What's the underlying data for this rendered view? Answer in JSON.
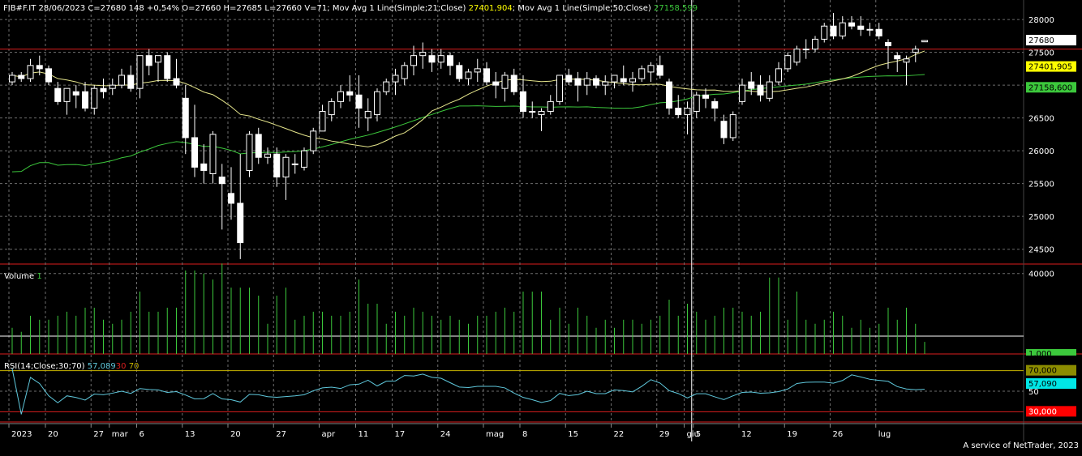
{
  "header": {
    "symbol_info": "FIB#F.IT 28/06/2023 C=27680 148 +0,54% O=27660 H=27685 L=27660 V=71;",
    "ma21_label": "Mov Avg 1 Line(Simple;21;Close)",
    "ma21_value": "27401,904",
    "sep": ";",
    "ma50_label": "Mov Avg 1 Line(Simple;50;Close)",
    "ma50_value": "27158,599"
  },
  "volume_label": {
    "name": "Volume",
    "value": "1"
  },
  "rsi_label": {
    "name": "RSI(14;Close;30;70)",
    "value": "57,089",
    "low": "30",
    "high": "70"
  },
  "credit": "A service of NetTrader, 2023",
  "colors": {
    "background": "#000000",
    "candle": "#ffffff",
    "ma21": "#e6e68c",
    "ma50": "#3cc83c",
    "volume": "#3cc83c",
    "rsi": "#5fc8dc",
    "limit_red": "#dc1e1e",
    "grid": "#6e6e6e",
    "badge_last": "#ffffff",
    "badge_ma21": "#ffff00",
    "badge_ma50": "#3cc83c",
    "badge_rsi70": "#8c8c00",
    "badge_rsi": "#00e6e6",
    "badge_rsi30": "#ff0000"
  },
  "chart_data": [
    {
      "type": "candlestick",
      "ylim": [
        24200,
        28100
      ],
      "yticks": [
        "24500",
        "25000",
        "25500",
        "26000",
        "26500",
        "27000",
        "27500",
        "28000"
      ],
      "last_badges": [
        "27680",
        "27401,905",
        "27158,600"
      ],
      "reference_line": 27550,
      "ohlc": [
        [
          27050,
          27200,
          27000,
          27150
        ],
        [
          27150,
          27200,
          27050,
          27100
        ],
        [
          27100,
          27400,
          27050,
          27300
        ],
        [
          27300,
          27450,
          27150,
          27250
        ],
        [
          27250,
          27300,
          27000,
          27050
        ],
        [
          26950,
          27050,
          26700,
          26750
        ],
        [
          26750,
          26950,
          26550,
          26950
        ],
        [
          26900,
          27000,
          26650,
          26850
        ],
        [
          26900,
          27050,
          26600,
          26650
        ],
        [
          26650,
          27000,
          26550,
          26950
        ],
        [
          26950,
          27100,
          26800,
          26900
        ],
        [
          26950,
          27100,
          26850,
          27000
        ],
        [
          27000,
          27250,
          26950,
          27150
        ],
        [
          27150,
          27300,
          26900,
          26950
        ],
        [
          26950,
          27450,
          26800,
          27450
        ],
        [
          27450,
          27550,
          27150,
          27300
        ],
        [
          27350,
          27450,
          27050,
          27450
        ],
        [
          27450,
          27500,
          27050,
          27100
        ],
        [
          27100,
          27400,
          26950,
          27000
        ],
        [
          26800,
          27000,
          25950,
          26200
        ],
        [
          26200,
          26700,
          25600,
          25750
        ],
        [
          25800,
          26100,
          25500,
          25700
        ],
        [
          25650,
          26300,
          25500,
          26250
        ],
        [
          25600,
          25800,
          24800,
          25500
        ],
        [
          25350,
          25750,
          24950,
          25200
        ],
        [
          25200,
          25950,
          24350,
          24600
        ],
        [
          25700,
          26300,
          25600,
          26250
        ],
        [
          26250,
          26350,
          25800,
          25900
        ],
        [
          25900,
          26050,
          25800,
          25950
        ],
        [
          25950,
          26050,
          25450,
          25600
        ],
        [
          25600,
          25950,
          25250,
          25900
        ],
        [
          25800,
          25950,
          25650,
          25800
        ],
        [
          25750,
          26050,
          25700,
          26000
        ],
        [
          26000,
          26350,
          25950,
          26300
        ],
        [
          26300,
          26700,
          26300,
          26600
        ],
        [
          26550,
          26800,
          26450,
          26750
        ],
        [
          26750,
          27000,
          26650,
          26900
        ],
        [
          26900,
          27150,
          26750,
          26850
        ],
        [
          26850,
          27150,
          26350,
          26650
        ],
        [
          26500,
          26800,
          26300,
          26600
        ],
        [
          26550,
          26950,
          26450,
          26900
        ],
        [
          26900,
          27100,
          26850,
          27050
        ],
        [
          27050,
          27250,
          26850,
          27150
        ],
        [
          27100,
          27350,
          27000,
          27300
        ],
        [
          27300,
          27600,
          27150,
          27450
        ],
        [
          27450,
          27650,
          27250,
          27500
        ],
        [
          27450,
          27550,
          27200,
          27350
        ],
        [
          27350,
          27550,
          27250,
          27450
        ],
        [
          27450,
          27500,
          27150,
          27300
        ],
        [
          27300,
          27350,
          27050,
          27100
        ],
        [
          27100,
          27250,
          27000,
          27200
        ],
        [
          27200,
          27400,
          27050,
          27250
        ],
        [
          27250,
          27350,
          27000,
          27050
        ],
        [
          27050,
          27200,
          26800,
          27000
        ],
        [
          26950,
          27200,
          26750,
          27150
        ],
        [
          27150,
          27250,
          26850,
          26900
        ],
        [
          26900,
          27150,
          26500,
          26600
        ],
        [
          26600,
          26750,
          26500,
          26600
        ],
        [
          26550,
          26650,
          26300,
          26600
        ],
        [
          26600,
          26850,
          26550,
          26750
        ],
        [
          26750,
          27150,
          26700,
          27150
        ],
        [
          27150,
          27250,
          27000,
          27050
        ],
        [
          27100,
          27200,
          26750,
          27000
        ],
        [
          27000,
          27200,
          26850,
          27100
        ],
        [
          27100,
          27150,
          26950,
          27000
        ],
        [
          27000,
          27150,
          26850,
          27050
        ],
        [
          27050,
          27150,
          26950,
          27150
        ],
        [
          27100,
          27300,
          27000,
          27050
        ],
        [
          27050,
          27200,
          26900,
          27100
        ],
        [
          27100,
          27300,
          27050,
          27250
        ],
        [
          27200,
          27350,
          27050,
          27300
        ],
        [
          27300,
          27450,
          27100,
          27150
        ],
        [
          27050,
          27100,
          26550,
          26650
        ],
        [
          26650,
          26850,
          26500,
          26550
        ],
        [
          26550,
          26750,
          26250,
          26650
        ],
        [
          26600,
          26900,
          26500,
          26850
        ],
        [
          26850,
          26950,
          26650,
          26800
        ],
        [
          26750,
          26800,
          26450,
          26650
        ],
        [
          26450,
          26550,
          26100,
          26200
        ],
        [
          26200,
          26600,
          26150,
          26550
        ],
        [
          26750,
          27100,
          26700,
          27000
        ],
        [
          27050,
          27200,
          26850,
          26950
        ],
        [
          27000,
          27150,
          26750,
          26850
        ],
        [
          26800,
          27150,
          26750,
          27050
        ],
        [
          27050,
          27350,
          27000,
          27250
        ],
        [
          27250,
          27500,
          27200,
          27450
        ],
        [
          27350,
          27600,
          27300,
          27550
        ],
        [
          27550,
          27700,
          27400,
          27550
        ],
        [
          27550,
          27750,
          27500,
          27700
        ],
        [
          27700,
          27950,
          27650,
          27900
        ],
        [
          27900,
          28100,
          27700,
          27750
        ],
        [
          27750,
          28050,
          27700,
          27950
        ],
        [
          27950,
          28050,
          27850,
          27900
        ],
        [
          27900,
          28050,
          27750,
          27850
        ],
        [
          27850,
          27950,
          27750,
          27850
        ],
        [
          27850,
          27950,
          27700,
          27750
        ],
        [
          27650,
          27700,
          27250,
          27600
        ],
        [
          27450,
          27500,
          27200,
          27400
        ],
        [
          27350,
          27450,
          27000,
          27400
        ],
        [
          27500,
          27600,
          27350,
          27550
        ],
        [
          27660,
          27685,
          27660,
          27680
        ]
      ]
    },
    {
      "type": "bar",
      "title": "Volume",
      "ylim": [
        0,
        41500
      ],
      "yticks": [
        "40000"
      ],
      "badge": "1,000"
    },
    {
      "type": "line",
      "title": "RSI(14;Close;30;70)",
      "ylim": [
        20,
        80
      ],
      "yticks": [
        "50"
      ],
      "levels": [
        30,
        70
      ],
      "badges": [
        "70,000",
        "57,090",
        "30,000"
      ]
    }
  ],
  "x_axis": {
    "labels": [
      {
        "text": "2023",
        "pos": 0
      },
      {
        "text": "20",
        "pos": 4
      },
      {
        "text": "27",
        "pos": 9
      },
      {
        "text": "mar",
        "pos": 11
      },
      {
        "text": "6",
        "pos": 14
      },
      {
        "text": "13",
        "pos": 19
      },
      {
        "text": "20",
        "pos": 24
      },
      {
        "text": "27",
        "pos": 29
      },
      {
        "text": "apr",
        "pos": 34
      },
      {
        "text": "11",
        "pos": 38
      },
      {
        "text": "17",
        "pos": 42
      },
      {
        "text": "24",
        "pos": 47
      },
      {
        "text": "mag",
        "pos": 52
      },
      {
        "text": "8",
        "pos": 56
      },
      {
        "text": "15",
        "pos": 61
      },
      {
        "text": "22",
        "pos": 66
      },
      {
        "text": "29",
        "pos": 71
      },
      {
        "text": "giu",
        "pos": 74
      },
      {
        "text": "5",
        "pos": 75
      },
      {
        "text": "12",
        "pos": 80
      },
      {
        "text": "19",
        "pos": 85
      },
      {
        "text": "26",
        "pos": 90
      },
      {
        "text": "lug",
        "pos": 95
      }
    ],
    "crosshair_pos": 75
  }
}
